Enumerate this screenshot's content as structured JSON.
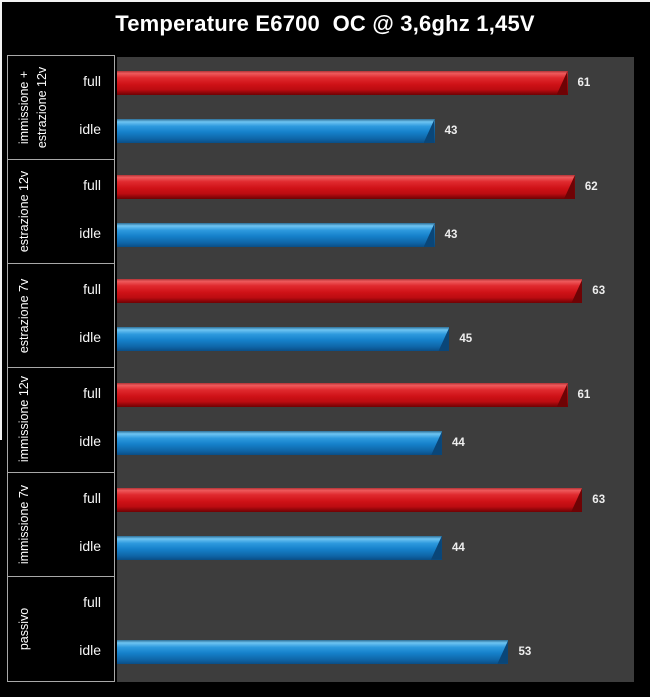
{
  "colors": {
    "background": "#000000",
    "plot_background": "#3d3d3d",
    "grid_border": "#a8a8a8",
    "bar_full": "#cf1217",
    "bar_idle": "#1580ca",
    "text": "#ffffff"
  },
  "chart_data": {
    "type": "bar",
    "orientation": "horizontal",
    "title": "Temperature E6700  OC @ 3,6ghz 1,45V",
    "categories": [
      "immissione +\nestrazione 12v",
      "estrazione 12v",
      "estrazione 7v",
      "immissione 12v",
      "immissione 7v",
      "passivo"
    ],
    "series": [
      {
        "name": "full",
        "color": "#cf1217",
        "values": [
          61,
          62,
          63,
          61,
          63,
          null
        ]
      },
      {
        "name": "idle",
        "color": "#1580ca",
        "values": [
          43,
          43,
          45,
          44,
          44,
          53
        ]
      }
    ],
    "xlim": [
      0,
      70
    ],
    "grid": false,
    "legend": "none",
    "value_labels": "right-of-bar"
  }
}
